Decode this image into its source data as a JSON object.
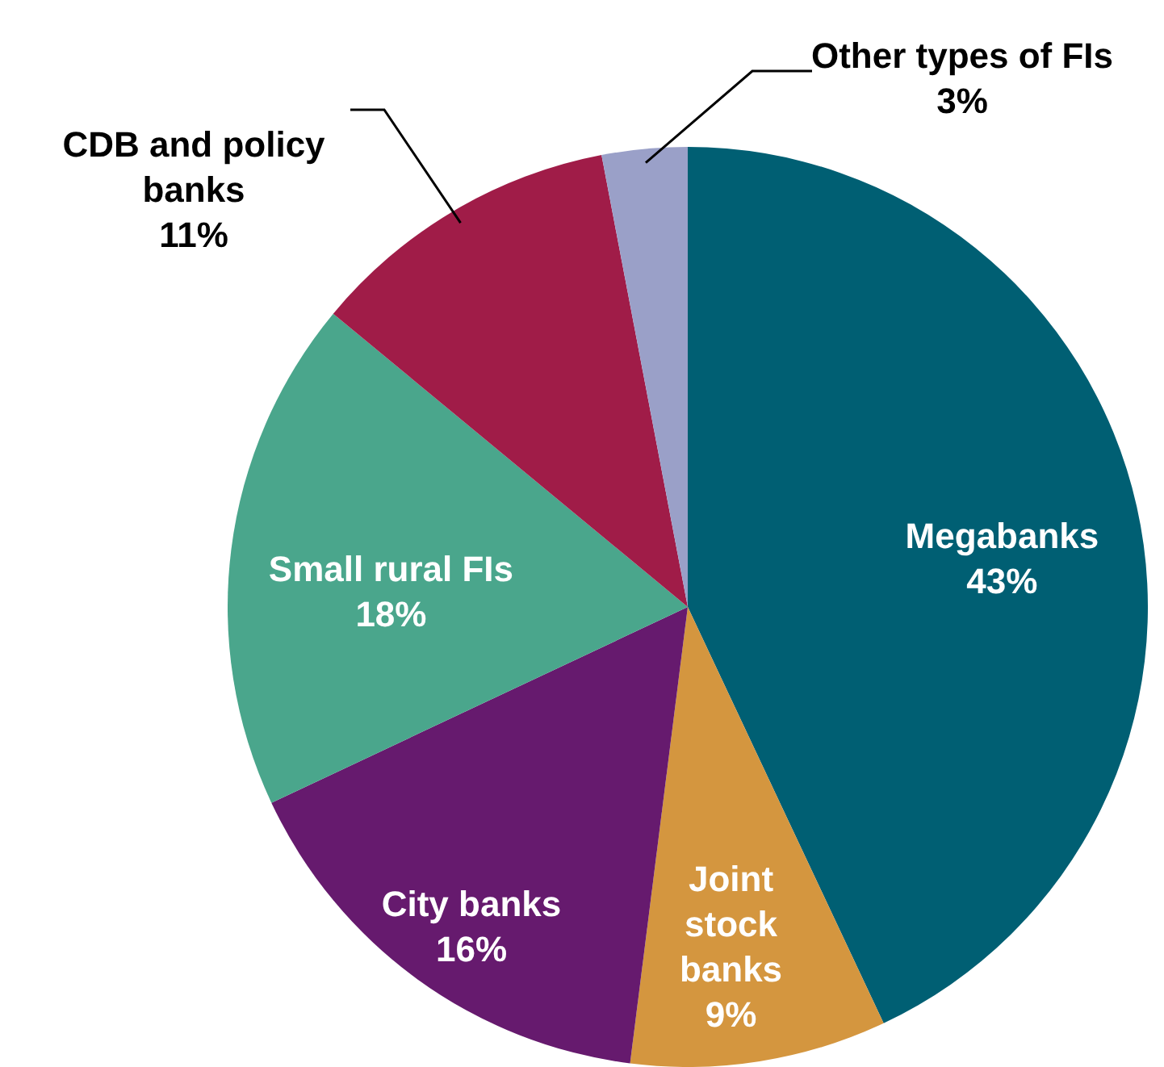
{
  "chart_data": {
    "type": "pie",
    "categories": [
      "Megabanks",
      "Joint stock banks",
      "City banks",
      "Small rural FIs",
      "CDB and policy banks",
      "Other types of FIs"
    ],
    "values": [
      43,
      9,
      16,
      18,
      11,
      3
    ],
    "value_labels": [
      "43%",
      "9%",
      "16%",
      "18%",
      "11%",
      "3%"
    ],
    "colors": [
      "#005f73",
      "#d4963f",
      "#661a6e",
      "#4aa68c",
      "#a01c48",
      "#9aa0c8"
    ]
  }
}
